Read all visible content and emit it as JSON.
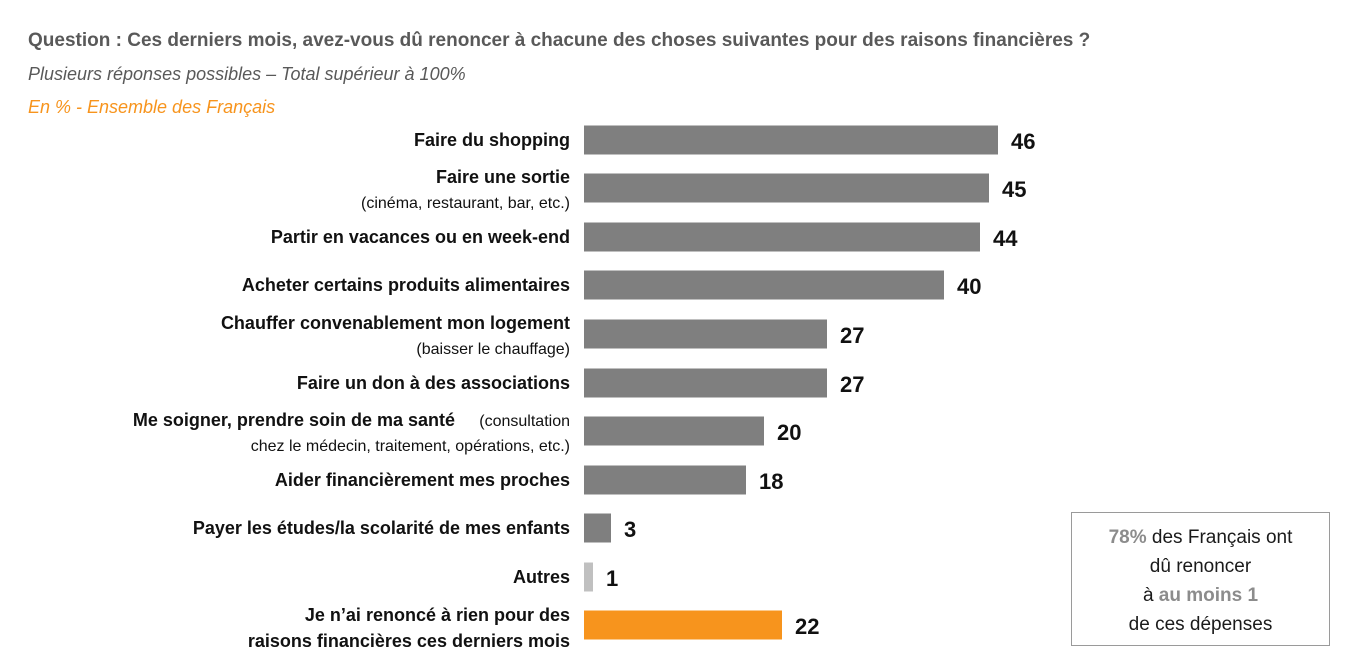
{
  "header": {
    "question": "Question : Ces derniers mois, avez-vous dû renoncer à chacune des choses suivantes pour des raisons financières ?",
    "subtitle": "Plusieurs réponses possibles – Total supérieur à 100%",
    "unit": "En % - Ensemble des Français"
  },
  "colors": {
    "main": "#7f7f7f",
    "other": "#c0c0c0",
    "highlight": "#f7941d"
  },
  "chart_data": {
    "type": "bar",
    "orientation": "horizontal",
    "grid": false,
    "categories": [
      {
        "label": "Faire du shopping",
        "note": "",
        "value": 46,
        "color": "main"
      },
      {
        "label": "Faire une sortie",
        "note": "(cinéma, restaurant, bar, etc.)",
        "value": 45,
        "color": "main"
      },
      {
        "label": "Partir en vacances ou en week-end",
        "note": "",
        "value": 44,
        "color": "main"
      },
      {
        "label": "Acheter certains produits alimentaires",
        "note": "",
        "value": 40,
        "color": "main"
      },
      {
        "label": "Chauffer convenablement mon logement",
        "note": "(baisser le chauffage)",
        "value": 27,
        "color": "main"
      },
      {
        "label": "Faire un don à des associations",
        "note": "",
        "value": 27,
        "color": "main"
      },
      {
        "label": "Me soigner, prendre soin de ma santé",
        "note": "(consultation",
        "note2": "chez le médecin, traitement, opérations, etc.)",
        "value": 20,
        "color": "main"
      },
      {
        "label": "Aider financièrement mes proches",
        "note": "",
        "value": 18,
        "color": "main"
      },
      {
        "label": "Payer les études/la scolarité de mes enfants",
        "note": "",
        "value": 3,
        "color": "main"
      },
      {
        "label": "Autres",
        "note": "",
        "value": 1,
        "color": "other"
      },
      {
        "label": "Je n’ai renoncé à rien pour des",
        "label2": "raisons financières ces derniers mois",
        "note": "",
        "value": 22,
        "color": "highlight"
      }
    ]
  },
  "callout": {
    "pct": "78%",
    "text1": " des Français ont",
    "text2": "dû renoncer",
    "text3": "à ",
    "emph": "au moins 1",
    "text4": "de ces dépenses"
  }
}
